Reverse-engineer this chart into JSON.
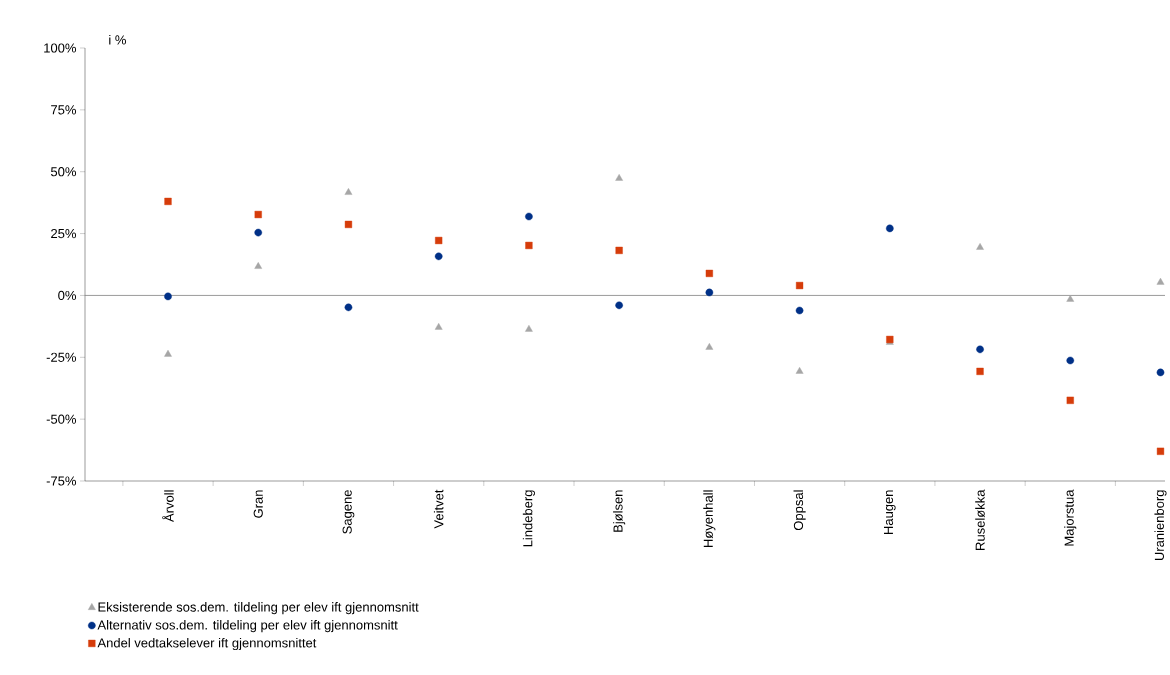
{
  "chart_data": {
    "type": "scatter",
    "ylabel": "i %",
    "categories": [
      "Årvoll",
      "Gran",
      "Sagene",
      "Veitvet",
      "Lindeberg",
      "Bjølsen",
      "Høyenhall",
      "Oppsal",
      "Haugen",
      "Ruseløkka",
      "Majorstua",
      "Uranienborg"
    ],
    "series": [
      {
        "name": "Eksisterende sos.dem. tildeling per elev ift gjennomsnitt",
        "color": "#a6a6a6",
        "marker": "triangle",
        "values": [
          -23.8,
          11.7,
          41.6,
          -12.9,
          -13.7,
          47.3,
          -21.0,
          -30.7,
          -19.0,
          19.4,
          -1.6,
          5.3
        ]
      },
      {
        "name": "Alternativ sos.dem. tildeling per elev ift gjennomsnitt",
        "color": "#003087",
        "marker": "circle",
        "values": [
          -0.4,
          25.4,
          -4.8,
          15.8,
          31.9,
          -4.0,
          1.2,
          -6.1,
          27.1,
          -21.8,
          -26.3,
          -31.1
        ]
      },
      {
        "name": "Andel vedtakselever ift gjennomsnittet",
        "color": "#d63c0a",
        "marker": "square",
        "values": [
          38.0,
          32.7,
          28.7,
          22.2,
          20.2,
          18.2,
          8.9,
          4.0,
          -17.8,
          -30.7,
          -42.4,
          -63.0
        ]
      }
    ],
    "ylim": [
      -75,
      100
    ],
    "yticks": [
      {
        "value": -75,
        "label": "-75%"
      },
      {
        "value": -50,
        "label": "-50%"
      },
      {
        "value": -25,
        "label": "-25%"
      },
      {
        "value": 0,
        "label": "0%"
      },
      {
        "value": 25,
        "label": "25%"
      },
      {
        "value": 50,
        "label": "50%"
      },
      {
        "value": 75,
        "label": "75%"
      },
      {
        "value": 100,
        "label": "100%"
      }
    ],
    "ref_lines": [
      {
        "axis": "y",
        "value": 0,
        "color": "#808080"
      }
    ],
    "grid": false,
    "legend": "bottom"
  }
}
